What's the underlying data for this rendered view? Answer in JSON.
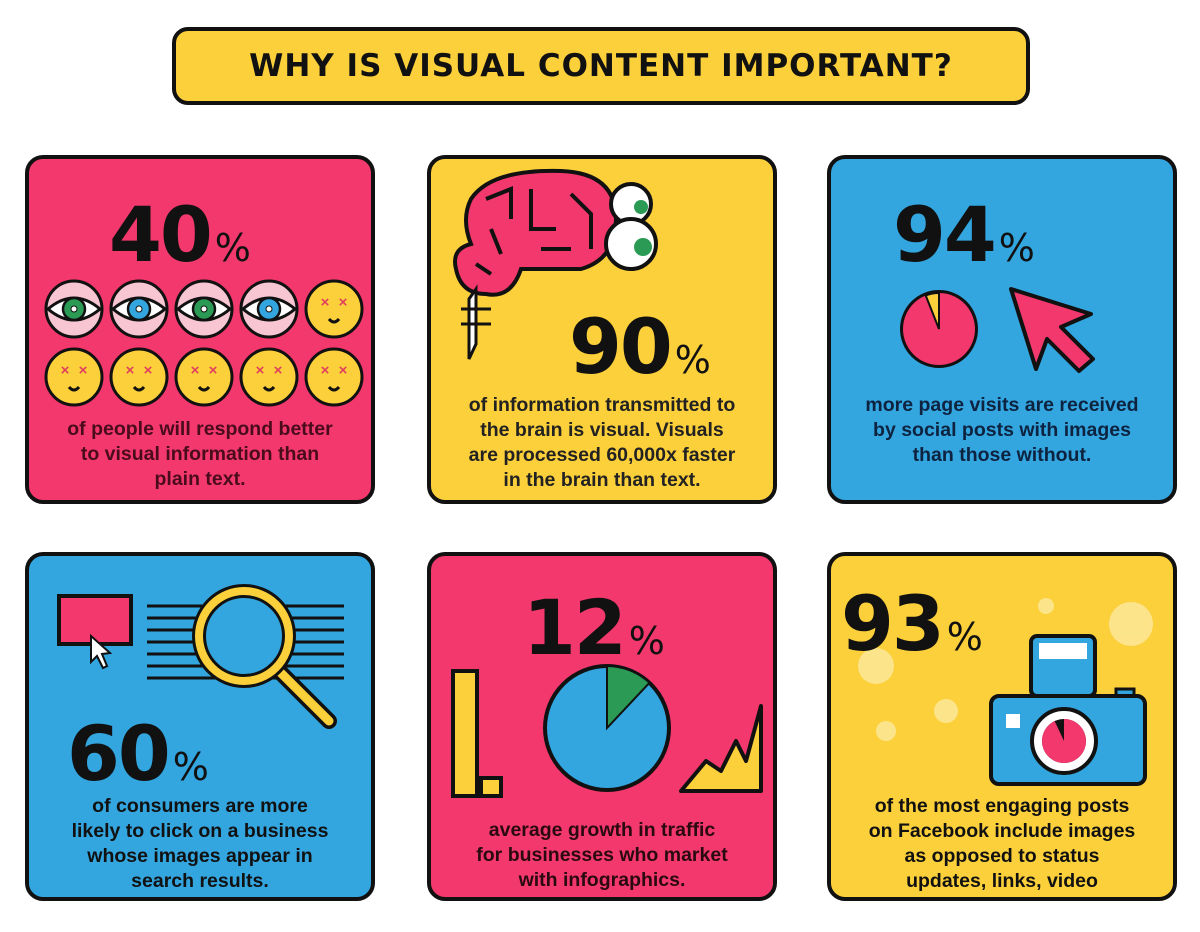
{
  "title": "WHY IS VISUAL CONTENT IMPORTANT?",
  "colors": {
    "pink": "#f2386c",
    "yellow": "#fcd03a",
    "blue": "#33a5df",
    "green": "#2a9a55",
    "outline": "#111111"
  },
  "cards": [
    {
      "value": "40",
      "unit": "%",
      "icon": "eyes-and-dizzy-faces-icon",
      "fraction_shown": 0.4,
      "lines": [
        "of people will respond better",
        "to visual information than",
        "plain text."
      ]
    },
    {
      "value": "90",
      "unit": "%",
      "icon": "brain-with-eyes-icon",
      "lines": [
        "of information transmitted to",
        "the brain is visual. Visuals",
        "are processed 60,000x faster",
        "in the brain than text."
      ]
    },
    {
      "value": "94",
      "unit": "%",
      "icon": "pie-and-cursor-icon",
      "pie_fraction": 0.94,
      "lines": [
        "more page visits are received",
        "by social posts with images",
        "than those without."
      ]
    },
    {
      "value": "60",
      "unit": "%",
      "icon": "search-results-magnifier-icon",
      "lines": [
        "of consumers are more",
        "likely to click on a business",
        "whose images appear in",
        "search results."
      ]
    },
    {
      "value": "12",
      "unit": "%",
      "icon": "growth-charts-icon",
      "pie_fraction": 0.12,
      "lines": [
        "average growth in traffic",
        "for businesses who market",
        "with infographics."
      ]
    },
    {
      "value": "93",
      "unit": "%",
      "icon": "camera-icon",
      "pie_fraction": 0.93,
      "lines": [
        "of the most engaging posts",
        "on Facebook include images",
        "as opposed to status",
        "updates, links, video"
      ]
    }
  ]
}
